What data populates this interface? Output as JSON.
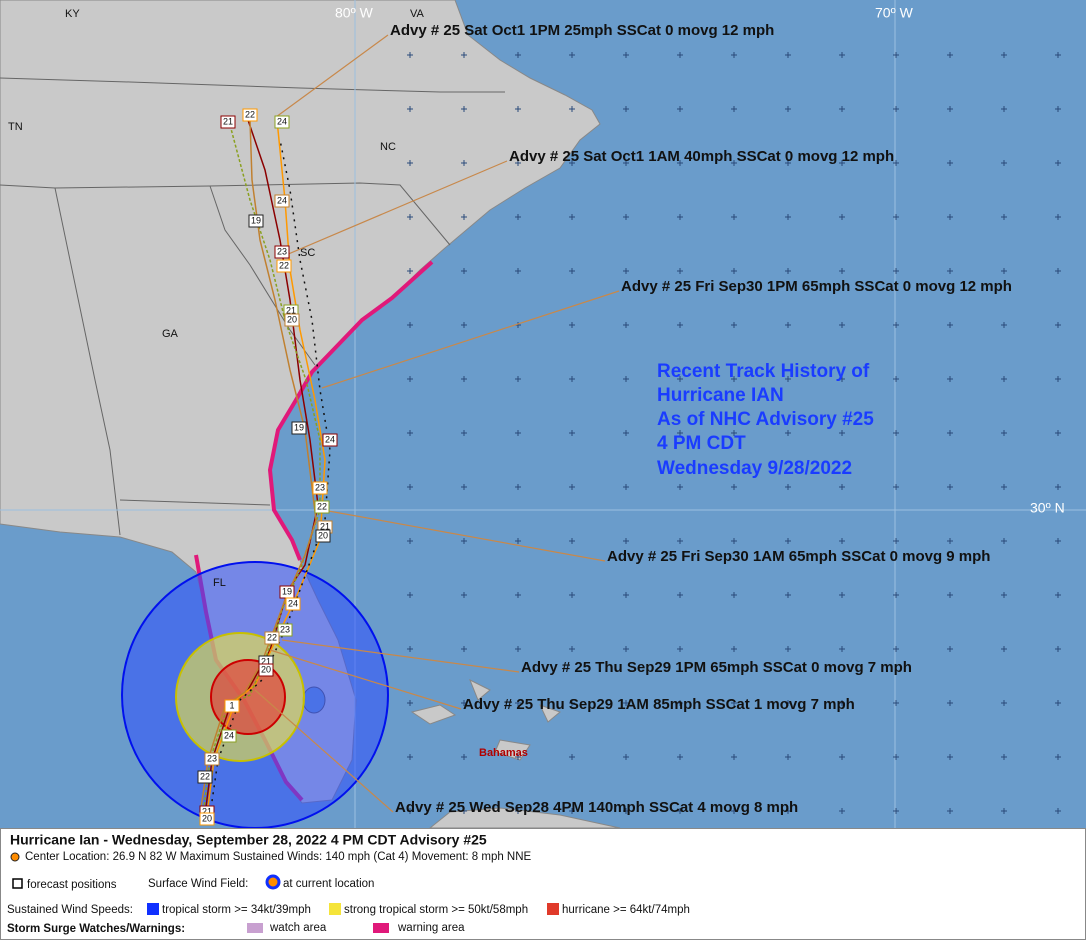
{
  "map_labels": {
    "states": [
      "KY",
      "VA",
      "TN",
      "NC",
      "SC",
      "GA",
      "FL"
    ],
    "bahamas": "Bahamas",
    "graticule": [
      "80º W",
      "70º W",
      "30º N"
    ]
  },
  "advisories": [
    "Advy # 25 Sat Oct1 1PM  25mph SSCat 0 movg 12 mph",
    "Advy # 25 Sat Oct1 1AM  40mph SSCat 0 movg 12 mph",
    "Advy # 25 Fri Sep30 1PM  65mph SSCat 0 movg 12 mph",
    "Advy # 25 Fri Sep30 1AM  65mph SSCat 0 movg 9 mph",
    "Advy # 25 Thu Sep29 1PM  65mph SSCat 0 movg 7 mph",
    "Advy # 25 Thu Sep29 1AM  85mph SSCat 1 movg 7 mph",
    "Advy # 25 Wed Sep28 4PM  140mph SSCat 4 movg 8 mph"
  ],
  "title_lines": [
    "Recent Track History of",
    "Hurricane IAN",
    "As of NHC Advisory #25",
    "4 PM CDT",
    "Wednesday 9/28/2022"
  ],
  "track_labels": [
    "21",
    "22",
    "24",
    "24",
    "19",
    "23",
    "22",
    "21",
    "20",
    "19",
    "24",
    "23",
    "22",
    "21",
    "20",
    "19",
    "24",
    "23",
    "22",
    "21",
    "20",
    "1",
    "24",
    "23",
    "22",
    "21",
    "20"
  ],
  "legend": {
    "title": "Hurricane Ian  -  Wednesday, September 28, 2022  4 PM CDT   Advisory #25",
    "details": "Center Location: 26.9 N  82 W   Maximum Sustained Winds: 140 mph (Cat 4) Movement: 8 mph NNE",
    "forecast": "forecast positions",
    "wind_field": "Surface Wind Field:",
    "current": "at current location",
    "speeds_label": "Sustained Wind Speeds:",
    "speeds": [
      "tropical storm >= 34kt/39mph",
      "strong tropical storm >= 50kt/58mph",
      "hurricane >= 64kt/74mph"
    ],
    "surge_label": "Storm Surge Watches/Warnings:",
    "surge": [
      "watch area",
      "warning area"
    ]
  }
}
